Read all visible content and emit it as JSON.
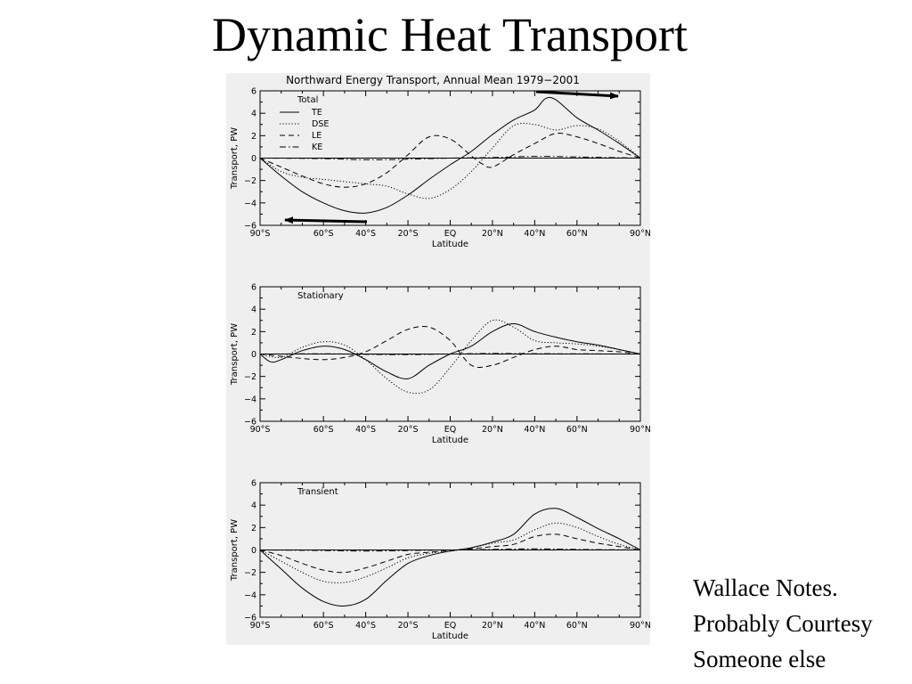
{
  "slide": {
    "title": "Dynamic Heat Transport",
    "note_lines": [
      "Wallace Notes.",
      "Probably Courtesy",
      "Someone else"
    ]
  },
  "figure": {
    "title": "Northward Energy Transport, Annual Mean 1979−2001"
  },
  "chart_data": [
    {
      "type": "line",
      "panel_label": "Total",
      "xlabel": "Latitude",
      "ylabel": "Transport, PW",
      "xlim": [
        -90,
        90
      ],
      "ylim": [
        -6,
        6
      ],
      "x_ticks": [
        -90,
        -60,
        -40,
        -20,
        0,
        20,
        40,
        60,
        90
      ],
      "x_tick_labels": [
        "90°S",
        "60°S",
        "40°S",
        "20°S",
        "EQ",
        "20°N",
        "40°N",
        "60°N",
        "90°N"
      ],
      "y_ticks": [
        -6,
        -4,
        -2,
        0,
        2,
        4,
        6
      ],
      "y_tick_labels": [
        "−6",
        "−4",
        "−2",
        "0",
        "2",
        "4",
        "6"
      ],
      "legend": {
        "placement": "top-left",
        "entries": [
          "TE",
          "DSE",
          "LE",
          "KE"
        ]
      },
      "zero_line": true,
      "series": [
        {
          "name": "TE",
          "style": "solid",
          "x": [
            -90,
            -80,
            -70,
            -60,
            -50,
            -40,
            -30,
            -20,
            -10,
            0,
            10,
            20,
            30,
            40,
            45,
            50,
            60,
            70,
            80,
            90
          ],
          "y": [
            0,
            -1.6,
            -3.0,
            -4.0,
            -4.7,
            -4.9,
            -4.4,
            -3.3,
            -1.9,
            -0.6,
            0.6,
            2.1,
            3.4,
            4.3,
            5.3,
            5.2,
            3.6,
            2.5,
            1.3,
            0
          ]
        },
        {
          "name": "DSE",
          "style": "dotted",
          "x": [
            -90,
            -80,
            -70,
            -60,
            -50,
            -40,
            -30,
            -20,
            -10,
            0,
            10,
            20,
            30,
            40,
            50,
            60,
            70,
            80,
            90
          ],
          "y": [
            0,
            -1.2,
            -1.7,
            -1.9,
            -2.1,
            -2.3,
            -2.5,
            -3.2,
            -3.6,
            -2.8,
            -1.2,
            0.9,
            2.9,
            3.0,
            2.5,
            2.9,
            2.6,
            1.5,
            0
          ]
        },
        {
          "name": "LE",
          "style": "dashed",
          "x": [
            -90,
            -80,
            -70,
            -60,
            -50,
            -40,
            -30,
            -20,
            -10,
            0,
            10,
            15,
            20,
            30,
            40,
            50,
            60,
            70,
            80,
            90
          ],
          "y": [
            0,
            -0.8,
            -1.6,
            -2.3,
            -2.6,
            -2.3,
            -1.3,
            0.3,
            1.9,
            1.7,
            0.2,
            -0.5,
            -0.8,
            0.3,
            1.3,
            2.2,
            1.9,
            1.3,
            0.6,
            0
          ]
        },
        {
          "name": "KE",
          "style": "dashdot",
          "x": [
            -90,
            -60,
            -40,
            -20,
            0,
            20,
            40,
            60,
            90
          ],
          "y": [
            0,
            -0.05,
            -0.15,
            -0.1,
            0,
            0.05,
            0.15,
            0.1,
            0
          ]
        }
      ]
    },
    {
      "type": "line",
      "panel_label": "Stationary",
      "xlabel": "Latitude",
      "ylabel": "Transport, PW",
      "xlim": [
        -90,
        90
      ],
      "ylim": [
        -6,
        6
      ],
      "x_ticks": [
        -90,
        -60,
        -40,
        -20,
        0,
        20,
        40,
        60,
        90
      ],
      "x_tick_labels": [
        "90°S",
        "60°S",
        "40°S",
        "20°S",
        "EQ",
        "20°N",
        "40°N",
        "60°N",
        "90°N"
      ],
      "y_ticks": [
        -6,
        -4,
        -2,
        0,
        2,
        4,
        6
      ],
      "y_tick_labels": [
        "−6",
        "−4",
        "−2",
        "0",
        "2",
        "4",
        "6"
      ],
      "zero_line": true,
      "series": [
        {
          "name": "TE",
          "style": "solid",
          "x": [
            -90,
            -85,
            -80,
            -70,
            -60,
            -50,
            -40,
            -30,
            -20,
            -10,
            0,
            10,
            20,
            30,
            40,
            50,
            60,
            70,
            80,
            90
          ],
          "y": [
            0,
            -0.7,
            -0.5,
            0.3,
            0.7,
            0.4,
            -0.5,
            -1.6,
            -2.2,
            -1.0,
            0.0,
            0.7,
            2.0,
            2.7,
            2.0,
            1.5,
            1.1,
            0.8,
            0.4,
            0
          ]
        },
        {
          "name": "DSE",
          "style": "dotted",
          "x": [
            -90,
            -80,
            -70,
            -60,
            -50,
            -40,
            -30,
            -20,
            -10,
            0,
            10,
            20,
            30,
            40,
            50,
            60,
            70,
            80,
            90
          ],
          "y": [
            0,
            -0.3,
            0.6,
            1.1,
            0.8,
            -0.5,
            -2.2,
            -3.4,
            -3.2,
            -1.2,
            1.2,
            3.0,
            2.4,
            1.2,
            1.0,
            0.9,
            0.7,
            0.4,
            0
          ]
        },
        {
          "name": "LE",
          "style": "dashed",
          "x": [
            -90,
            -80,
            -70,
            -60,
            -50,
            -40,
            -30,
            -20,
            -10,
            0,
            10,
            20,
            30,
            40,
            50,
            60,
            70,
            80,
            90
          ],
          "y": [
            0,
            -0.2,
            -0.4,
            -0.5,
            -0.3,
            0.2,
            1.2,
            2.2,
            2.4,
            1.2,
            -1.0,
            -1.0,
            -0.3,
            0.4,
            0.7,
            0.4,
            0.3,
            0.2,
            0
          ]
        },
        {
          "name": "KE",
          "style": "dashdot",
          "x": [
            -90,
            -60,
            -40,
            -20,
            0,
            20,
            40,
            60,
            90
          ],
          "y": [
            0,
            0.02,
            -0.03,
            -0.05,
            0,
            0.05,
            0.03,
            0.02,
            0
          ]
        }
      ]
    },
    {
      "type": "line",
      "panel_label": "Transient",
      "xlabel": "Latitude",
      "ylabel": "Transport, PW",
      "xlim": [
        -90,
        90
      ],
      "ylim": [
        -6,
        6
      ],
      "x_ticks": [
        -90,
        -60,
        -40,
        -20,
        0,
        20,
        40,
        60,
        90
      ],
      "x_tick_labels": [
        "90°S",
        "60°S",
        "40°S",
        "20°S",
        "EQ",
        "20°N",
        "40°N",
        "60°N",
        "90°N"
      ],
      "y_ticks": [
        -6,
        -4,
        -2,
        0,
        2,
        4,
        6
      ],
      "y_tick_labels": [
        "−6",
        "−4",
        "−2",
        "0",
        "2",
        "4",
        "6"
      ],
      "zero_line": true,
      "series": [
        {
          "name": "TE",
          "style": "solid",
          "x": [
            -90,
            -80,
            -70,
            -60,
            -50,
            -40,
            -30,
            -20,
            -10,
            0,
            10,
            20,
            30,
            40,
            50,
            60,
            70,
            80,
            90
          ],
          "y": [
            0,
            -1.7,
            -3.4,
            -4.6,
            -5.0,
            -4.4,
            -2.7,
            -1.2,
            -0.5,
            -0.1,
            0.2,
            0.7,
            1.4,
            3.2,
            3.7,
            2.9,
            1.9,
            1.0,
            0
          ]
        },
        {
          "name": "DSE",
          "style": "dotted",
          "x": [
            -90,
            -80,
            -70,
            -60,
            -50,
            -40,
            -30,
            -20,
            -10,
            0,
            10,
            20,
            30,
            40,
            50,
            60,
            70,
            80,
            90
          ],
          "y": [
            0,
            -1.0,
            -2.0,
            -2.8,
            -2.9,
            -2.4,
            -1.6,
            -0.7,
            -0.3,
            -0.1,
            0.2,
            0.6,
            0.9,
            1.8,
            2.4,
            2.0,
            1.2,
            0.5,
            0
          ]
        },
        {
          "name": "LE",
          "style": "dashed",
          "x": [
            -90,
            -80,
            -70,
            -60,
            -50,
            -40,
            -30,
            -20,
            -10,
            0,
            10,
            20,
            30,
            40,
            50,
            60,
            70,
            80,
            90
          ],
          "y": [
            0,
            -0.5,
            -1.2,
            -1.8,
            -2.0,
            -1.6,
            -1.0,
            -0.4,
            -0.2,
            -0.05,
            0.1,
            0.3,
            0.5,
            1.2,
            1.4,
            1.0,
            0.6,
            0.3,
            0
          ]
        },
        {
          "name": "KE",
          "style": "dashdot",
          "x": [
            -90,
            -60,
            -40,
            -20,
            0,
            20,
            40,
            60,
            90
          ],
          "y": [
            0,
            -0.05,
            -0.1,
            -0.05,
            0,
            0.05,
            0.1,
            0.05,
            0
          ]
        }
      ]
    }
  ]
}
